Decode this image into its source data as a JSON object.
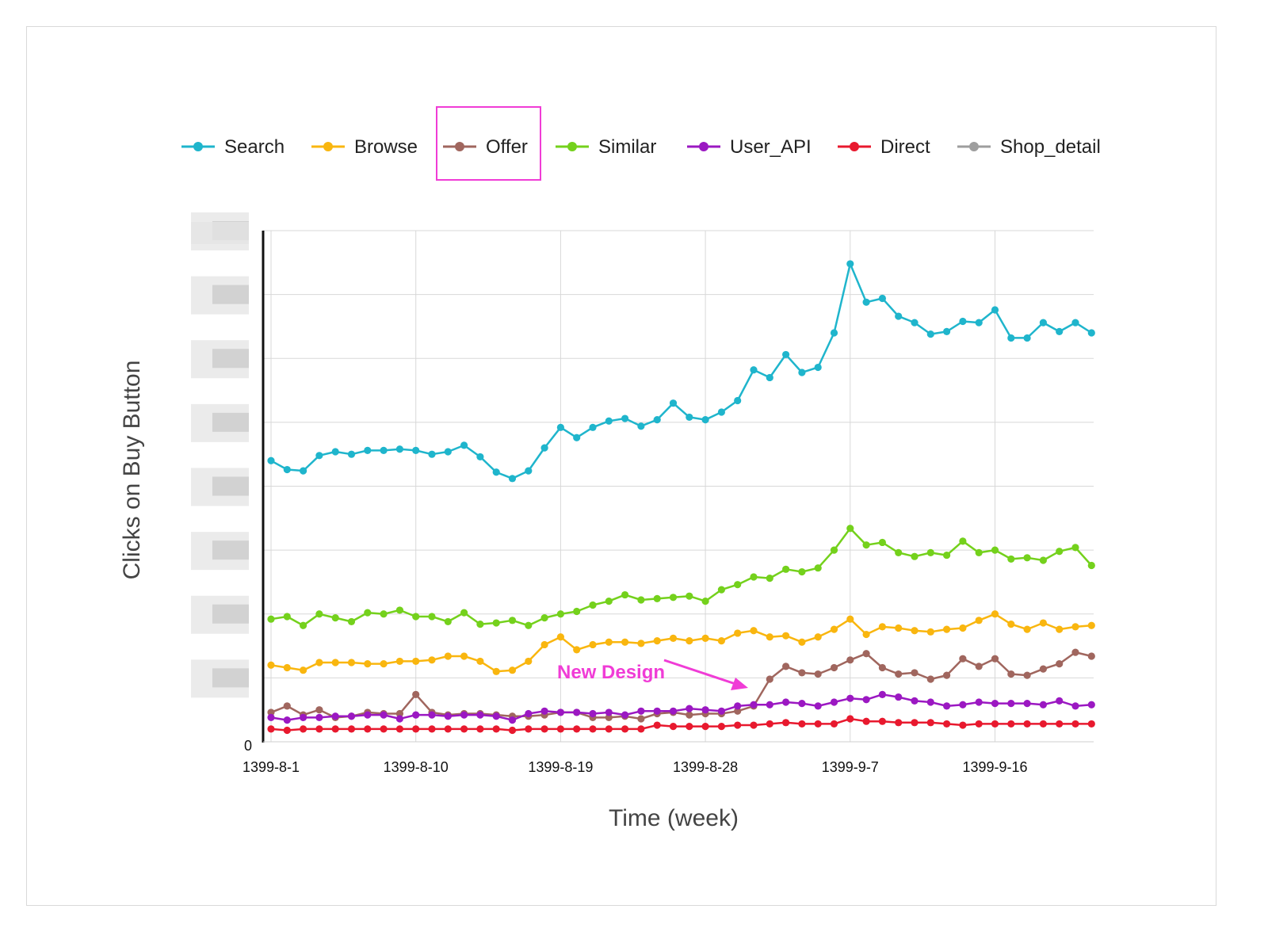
{
  "chart_data": {
    "type": "line",
    "xlabel": "Time (week)",
    "ylabel": "Clicks on Buy Button",
    "x_tick_labels": [
      "1399-8-1",
      "1399-8-10",
      "1399-8-19",
      "1399-8-28",
      "1399-9-7",
      "1399-9-16"
    ],
    "x_tick_index": [
      0,
      9,
      18,
      27,
      36,
      45
    ],
    "y_tick_labels": [
      "0"
    ],
    "ylim": [
      0,
      8
    ],
    "grid": true,
    "legend_position": "top",
    "annotation": {
      "text": "New Design",
      "color": "#f03cd6",
      "target_index": 30,
      "target_series": "Offer"
    },
    "highlighted_legend_item": "Offer",
    "series": [
      {
        "name": "Search",
        "color": "#1fb5cc",
        "values": [
          4.4,
          4.26,
          4.24,
          4.48,
          4.54,
          4.5,
          4.56,
          4.56,
          4.58,
          4.56,
          4.5,
          4.54,
          4.64,
          4.46,
          4.22,
          4.12,
          4.24,
          4.6,
          4.92,
          4.76,
          4.92,
          5.02,
          5.06,
          4.94,
          5.04,
          5.3,
          5.08,
          5.04,
          5.16,
          5.34,
          5.82,
          5.7,
          6.06,
          5.78,
          5.86,
          6.4,
          7.48,
          6.88,
          6.94,
          6.66,
          6.56,
          6.38,
          6.42,
          6.58,
          6.56,
          6.76,
          6.32,
          6.32,
          6.56,
          6.42,
          6.56,
          6.4
        ]
      },
      {
        "name": "Browse",
        "color": "#f9b60f",
        "values": [
          1.2,
          1.16,
          1.12,
          1.24,
          1.24,
          1.24,
          1.22,
          1.22,
          1.26,
          1.26,
          1.28,
          1.34,
          1.34,
          1.26,
          1.1,
          1.12,
          1.26,
          1.52,
          1.64,
          1.44,
          1.52,
          1.56,
          1.56,
          1.54,
          1.58,
          1.62,
          1.58,
          1.62,
          1.58,
          1.7,
          1.74,
          1.64,
          1.66,
          1.56,
          1.64,
          1.76,
          1.92,
          1.68,
          1.8,
          1.78,
          1.74,
          1.72,
          1.76,
          1.78,
          1.9,
          2.0,
          1.84,
          1.76,
          1.86,
          1.76,
          1.8,
          1.82
        ]
      },
      {
        "name": "Offer",
        "color": "#a0665e",
        "values": [
          0.46,
          0.56,
          0.42,
          0.5,
          0.38,
          0.4,
          0.46,
          0.44,
          0.44,
          0.74,
          0.46,
          0.42,
          0.44,
          0.44,
          0.42,
          0.4,
          0.4,
          0.42,
          0.46,
          0.46,
          0.38,
          0.38,
          0.4,
          0.36,
          0.44,
          0.46,
          0.42,
          0.44,
          0.44,
          0.48,
          0.56,
          0.98,
          1.18,
          1.08,
          1.06,
          1.16,
          1.28,
          1.38,
          1.16,
          1.06,
          1.08,
          0.98,
          1.04,
          1.3,
          1.18,
          1.3,
          1.06,
          1.04,
          1.14,
          1.22,
          1.4,
          1.34
        ]
      },
      {
        "name": "Similar",
        "color": "#74d11c",
        "values": [
          1.92,
          1.96,
          1.82,
          2.0,
          1.94,
          1.88,
          2.02,
          2.0,
          2.06,
          1.96,
          1.96,
          1.88,
          2.02,
          1.84,
          1.86,
          1.9,
          1.82,
          1.94,
          2.0,
          2.04,
          2.14,
          2.2,
          2.3,
          2.22,
          2.24,
          2.26,
          2.28,
          2.2,
          2.38,
          2.46,
          2.58,
          2.56,
          2.7,
          2.66,
          2.72,
          3.0,
          3.34,
          3.08,
          3.12,
          2.96,
          2.9,
          2.96,
          2.92,
          3.14,
          2.96,
          3.0,
          2.86,
          2.88,
          2.84,
          2.98,
          3.04,
          2.76
        ]
      },
      {
        "name": "User_API",
        "color": "#9b18c2",
        "values": [
          0.38,
          0.34,
          0.38,
          0.38,
          0.4,
          0.4,
          0.42,
          0.42,
          0.36,
          0.42,
          0.42,
          0.4,
          0.42,
          0.42,
          0.4,
          0.34,
          0.44,
          0.48,
          0.46,
          0.46,
          0.44,
          0.46,
          0.42,
          0.48,
          0.48,
          0.48,
          0.52,
          0.5,
          0.48,
          0.56,
          0.58,
          0.58,
          0.62,
          0.6,
          0.56,
          0.62,
          0.68,
          0.66,
          0.74,
          0.7,
          0.64,
          0.62,
          0.56,
          0.58,
          0.62,
          0.6,
          0.6,
          0.6,
          0.58,
          0.64,
          0.56,
          0.58
        ]
      },
      {
        "name": "Direct",
        "color": "#e8192e",
        "values": [
          0.2,
          0.18,
          0.2,
          0.2,
          0.2,
          0.2,
          0.2,
          0.2,
          0.2,
          0.2,
          0.2,
          0.2,
          0.2,
          0.2,
          0.2,
          0.18,
          0.2,
          0.2,
          0.2,
          0.2,
          0.2,
          0.2,
          0.2,
          0.2,
          0.26,
          0.24,
          0.24,
          0.24,
          0.24,
          0.26,
          0.26,
          0.28,
          0.3,
          0.28,
          0.28,
          0.28,
          0.36,
          0.32,
          0.32,
          0.3,
          0.3,
          0.3,
          0.28,
          0.26,
          0.28,
          0.28,
          0.28,
          0.28,
          0.28,
          0.28,
          0.28,
          0.28
        ]
      },
      {
        "name": "Shop_detail",
        "color": "#9e9e9e",
        "hidden": true,
        "values": []
      }
    ]
  }
}
